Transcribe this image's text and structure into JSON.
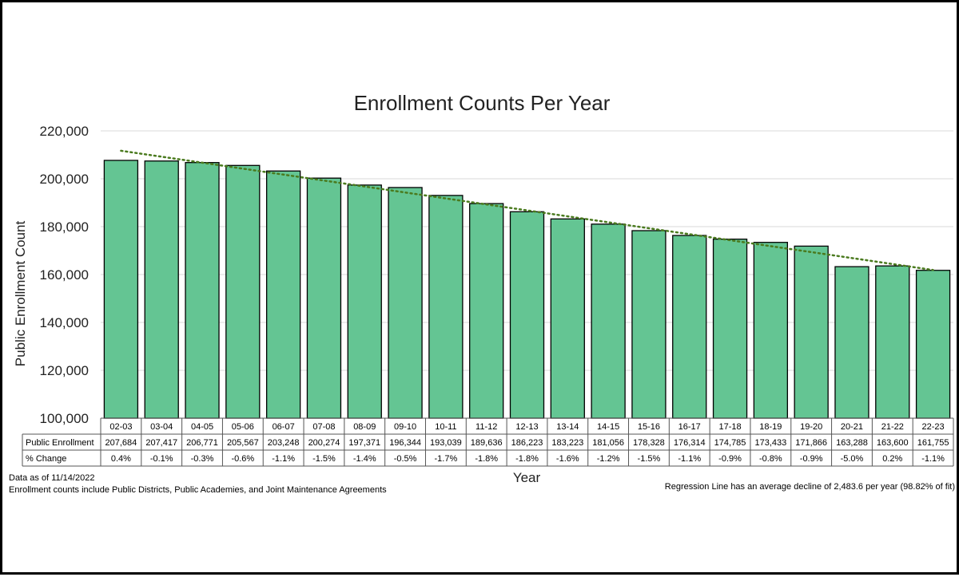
{
  "chart_data": {
    "type": "bar",
    "title": "Enrollment Counts Per Year",
    "xlabel": "Year",
    "ylabel": "Public Enrollment Count",
    "ylim": [
      100000,
      220000
    ],
    "yticks": [
      "100,000",
      "120,000",
      "140,000",
      "160,000",
      "180,000",
      "200,000",
      "220,000"
    ],
    "ytick_values": [
      100000,
      120000,
      140000,
      160000,
      180000,
      200000,
      220000
    ],
    "grid": true,
    "categories": [
      "02-03",
      "03-04",
      "04-05",
      "05-06",
      "06-07",
      "07-08",
      "08-09",
      "09-10",
      "10-11",
      "11-12",
      "12-13",
      "13-14",
      "14-15",
      "15-16",
      "16-17",
      "17-18",
      "18-19",
      "19-20",
      "20-21",
      "21-22",
      "22-23"
    ],
    "series": [
      {
        "name": "Public Enrollment",
        "values": [
          207684,
          207417,
          206771,
          205567,
          203248,
          200274,
          197371,
          196344,
          193039,
          189636,
          186223,
          183223,
          181056,
          178328,
          176314,
          174785,
          173433,
          171866,
          163288,
          163600,
          161755
        ]
      }
    ],
    "bar_color": "#64c593",
    "trendline": {
      "color": "#4a7a1e",
      "start": 211700,
      "end": 161900
    },
    "data_table": {
      "row_labels": [
        "Public Enrollment",
        "% Change"
      ],
      "enrollment_text": [
        "207,684",
        "207,417",
        "206,771",
        "205,567",
        "203,248",
        "200,274",
        "197,371",
        "196,344",
        "193,039",
        "189,636",
        "186,223",
        "183,223",
        "181,056",
        "178,328",
        "176,314",
        "174,785",
        "173,433",
        "171,866",
        "163,288",
        "163,600",
        "161,755"
      ],
      "pct_change": [
        "0.4%",
        "-0.1%",
        "-0.3%",
        "-0.6%",
        "-1.1%",
        "-1.5%",
        "-1.4%",
        "-0.5%",
        "-1.7%",
        "-1.8%",
        "-1.8%",
        "-1.6%",
        "-1.2%",
        "-1.5%",
        "-1.1%",
        "-0.9%",
        "-0.8%",
        "-0.9%",
        "-5.0%",
        "0.2%",
        "-1.1%"
      ]
    },
    "footnotes": {
      "data_date": "Data as of 11/14/2022",
      "scope": "Enrollment counts include Public Districts, Public Academies, and Joint Maintenance Agreements",
      "regression": "Regression Line has an average decline of 2,483.6 per year (98.82%  of fit)"
    }
  }
}
